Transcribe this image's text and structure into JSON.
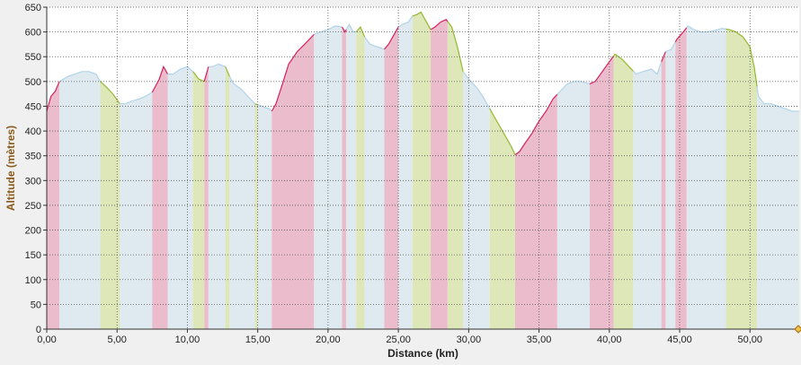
{
  "chart_data": {
    "type": "area",
    "xlabel": "Distance (km)",
    "ylabel": "Altitude (mètres)",
    "xlim": [
      0,
      53.5
    ],
    "ylim": [
      0,
      650
    ],
    "x_ticks": [
      "0,00",
      "5,00",
      "10,00",
      "15,00",
      "20,00",
      "25,00",
      "30,00",
      "35,00",
      "40,00",
      "45,00",
      "50,00"
    ],
    "x_tick_values": [
      0,
      5,
      10,
      15,
      20,
      25,
      30,
      35,
      40,
      45,
      50
    ],
    "y_ticks": [
      "0",
      "50",
      "100",
      "150",
      "200",
      "250",
      "300",
      "350",
      "400",
      "450",
      "500",
      "550",
      "600",
      "650"
    ],
    "y_tick_values": [
      0,
      50,
      100,
      150,
      200,
      250,
      300,
      350,
      400,
      450,
      500,
      550,
      600,
      650
    ],
    "grid": true,
    "colors": {
      "plot_bg": "#ffffff",
      "fill_flat": "#dfe9f0",
      "fill_climb": "#ebbccc",
      "fill_descent": "#dde7b8",
      "line_climb": "#d8205a",
      "line_descent": "#96b830",
      "line_flat": "#b0d4ea",
      "grid": "#555555"
    },
    "series": [
      {
        "x": [
          0.0,
          0.3,
          0.6,
          0.9,
          1.2,
          1.5,
          2.0,
          2.5,
          3.0,
          3.5,
          3.8,
          4.2,
          4.7,
          5.2,
          5.6,
          6.0,
          6.6,
          7.0,
          7.5,
          8.0,
          8.3,
          8.6,
          9.0,
          9.5,
          10.0,
          10.4,
          10.8,
          11.2,
          11.5,
          11.8,
          12.2,
          12.7,
          13.0,
          13.3,
          13.8,
          14.3,
          14.8,
          15.3,
          15.8,
          16.0,
          16.3,
          16.7,
          17.2,
          17.8,
          18.5,
          19.0,
          19.5,
          20.0,
          20.5,
          21.0,
          21.2,
          21.5,
          21.8,
          22.0,
          22.3,
          22.6,
          23.0,
          23.5,
          24.0,
          24.3,
          24.7,
          25.0,
          25.3,
          25.7,
          26.0,
          26.3,
          26.6,
          27.0,
          27.3,
          27.6,
          28.0,
          28.4,
          28.8,
          29.2,
          29.6,
          30.0,
          30.5,
          31.0,
          31.5,
          32.0,
          32.5,
          33.0,
          33.3,
          33.6,
          34.0,
          34.5,
          35.0,
          35.5,
          36.0,
          36.5,
          37.0,
          37.5,
          38.0,
          38.6,
          39.0,
          39.5,
          40.0,
          40.4,
          40.9,
          41.4,
          41.9,
          42.4,
          43.0,
          43.4,
          43.7,
          44.0,
          44.4,
          44.8,
          45.2,
          45.6,
          46.0,
          46.5,
          47.0,
          47.5,
          48.0,
          48.5,
          49.0,
          49.5,
          50.0,
          50.3,
          50.6,
          51.0,
          51.5,
          52.0,
          52.5,
          53.0,
          53.5
        ],
        "y": [
          440,
          470,
          480,
          500,
          505,
          510,
          515,
          520,
          520,
          515,
          500,
          490,
          475,
          455,
          455,
          460,
          465,
          470,
          478,
          505,
          530,
          515,
          515,
          525,
          530,
          520,
          505,
          500,
          530,
          530,
          535,
          530,
          510,
          495,
          485,
          470,
          455,
          450,
          445,
          440,
          455,
          490,
          535,
          560,
          580,
          595,
          600,
          605,
          612,
          610,
          600,
          615,
          600,
          600,
          610,
          590,
          575,
          570,
          565,
          575,
          595,
          610,
          615,
          620,
          632,
          635,
          640,
          620,
          605,
          610,
          620,
          625,
          610,
          570,
          520,
          505,
          490,
          470,
          445,
          420,
          395,
          370,
          352,
          358,
          375,
          395,
          420,
          440,
          465,
          480,
          495,
          500,
          500,
          495,
          500,
          520,
          540,
          555,
          545,
          530,
          515,
          520,
          525,
          515,
          540,
          560,
          565,
          585,
          598,
          612,
          605,
          600,
          600,
          603,
          607,
          605,
          600,
          590,
          570,
          530,
          470,
          455,
          455,
          450,
          445,
          440,
          440
        ]
      }
    ],
    "segments": [
      {
        "from": 0.0,
        "to": 0.9,
        "kind": "climb"
      },
      {
        "from": 0.9,
        "to": 3.8,
        "kind": "flat"
      },
      {
        "from": 3.8,
        "to": 5.2,
        "kind": "descent"
      },
      {
        "from": 5.2,
        "to": 7.5,
        "kind": "flat"
      },
      {
        "from": 7.5,
        "to": 8.6,
        "kind": "climb"
      },
      {
        "from": 8.6,
        "to": 10.4,
        "kind": "flat"
      },
      {
        "from": 10.4,
        "to": 11.2,
        "kind": "descent"
      },
      {
        "from": 11.2,
        "to": 11.5,
        "kind": "climb"
      },
      {
        "from": 11.5,
        "to": 12.7,
        "kind": "flat"
      },
      {
        "from": 12.7,
        "to": 13.0,
        "kind": "descent"
      },
      {
        "from": 13.0,
        "to": 14.8,
        "kind": "flat"
      },
      {
        "from": 14.8,
        "to": 15.0,
        "kind": "descent"
      },
      {
        "from": 15.0,
        "to": 16.0,
        "kind": "flat"
      },
      {
        "from": 16.0,
        "to": 19.0,
        "kind": "climb"
      },
      {
        "from": 19.0,
        "to": 21.0,
        "kind": "flat"
      },
      {
        "from": 21.0,
        "to": 21.3,
        "kind": "climb"
      },
      {
        "from": 21.3,
        "to": 22.0,
        "kind": "flat"
      },
      {
        "from": 22.0,
        "to": 22.6,
        "kind": "descent"
      },
      {
        "from": 22.6,
        "to": 24.0,
        "kind": "flat"
      },
      {
        "from": 24.0,
        "to": 25.0,
        "kind": "climb"
      },
      {
        "from": 25.0,
        "to": 26.0,
        "kind": "flat"
      },
      {
        "from": 26.0,
        "to": 27.3,
        "kind": "descent"
      },
      {
        "from": 27.3,
        "to": 28.5,
        "kind": "climb"
      },
      {
        "from": 28.5,
        "to": 29.6,
        "kind": "descent"
      },
      {
        "from": 29.6,
        "to": 31.5,
        "kind": "flat"
      },
      {
        "from": 31.5,
        "to": 33.3,
        "kind": "descent"
      },
      {
        "from": 33.3,
        "to": 36.3,
        "kind": "climb"
      },
      {
        "from": 36.3,
        "to": 38.6,
        "kind": "flat"
      },
      {
        "from": 38.6,
        "to": 40.3,
        "kind": "climb"
      },
      {
        "from": 40.3,
        "to": 41.7,
        "kind": "descent"
      },
      {
        "from": 41.7,
        "to": 43.7,
        "kind": "flat"
      },
      {
        "from": 43.7,
        "to": 44.0,
        "kind": "climb"
      },
      {
        "from": 44.0,
        "to": 44.7,
        "kind": "flat"
      },
      {
        "from": 44.7,
        "to": 45.5,
        "kind": "climb"
      },
      {
        "from": 45.5,
        "to": 48.3,
        "kind": "flat"
      },
      {
        "from": 48.3,
        "to": 50.5,
        "kind": "descent"
      },
      {
        "from": 50.5,
        "to": 53.5,
        "kind": "flat"
      }
    ]
  }
}
